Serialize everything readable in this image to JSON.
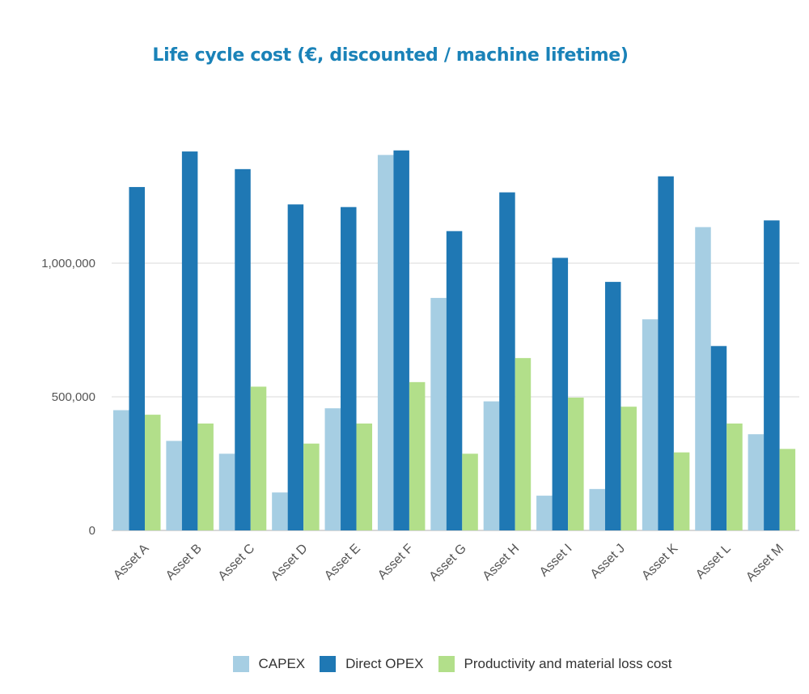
{
  "chart_data": {
    "type": "bar",
    "title": "Life cycle cost (€, discounted / machine lifetime)",
    "xlabel": "",
    "ylabel": "",
    "ylim": [
      0,
      1500000
    ],
    "yticks": [
      0,
      500000,
      1000000
    ],
    "ytick_labels": [
      "0",
      "500,000",
      "1,000,000"
    ],
    "grid": true,
    "legend_position": "bottom",
    "categories": [
      "Asset A",
      "Asset B",
      "Asset C",
      "Asset D",
      "Asset E",
      "Asset F",
      "Asset G",
      "Asset H",
      "Asset I",
      "Asset J",
      "Asset K",
      "Asset L",
      "Asset M"
    ],
    "series": [
      {
        "name": "CAPEX",
        "color": "#a6cee3",
        "values": [
          450000,
          335000,
          287000,
          142000,
          457000,
          1405000,
          870000,
          483000,
          130000,
          155000,
          790000,
          1135000,
          360000
        ]
      },
      {
        "name": "Direct OPEX",
        "color": "#1f78b4",
        "values": [
          1285000,
          1418000,
          1352000,
          1220000,
          1210000,
          1422000,
          1120000,
          1265000,
          1020000,
          930000,
          1325000,
          690000,
          1160000
        ]
      },
      {
        "name": "Productivity and material loss cost",
        "color": "#b2df8a",
        "values": [
          433000,
          400000,
          538000,
          325000,
          400000,
          555000,
          287000,
          645000,
          497000,
          463000,
          292000,
          400000,
          305000
        ]
      }
    ]
  }
}
